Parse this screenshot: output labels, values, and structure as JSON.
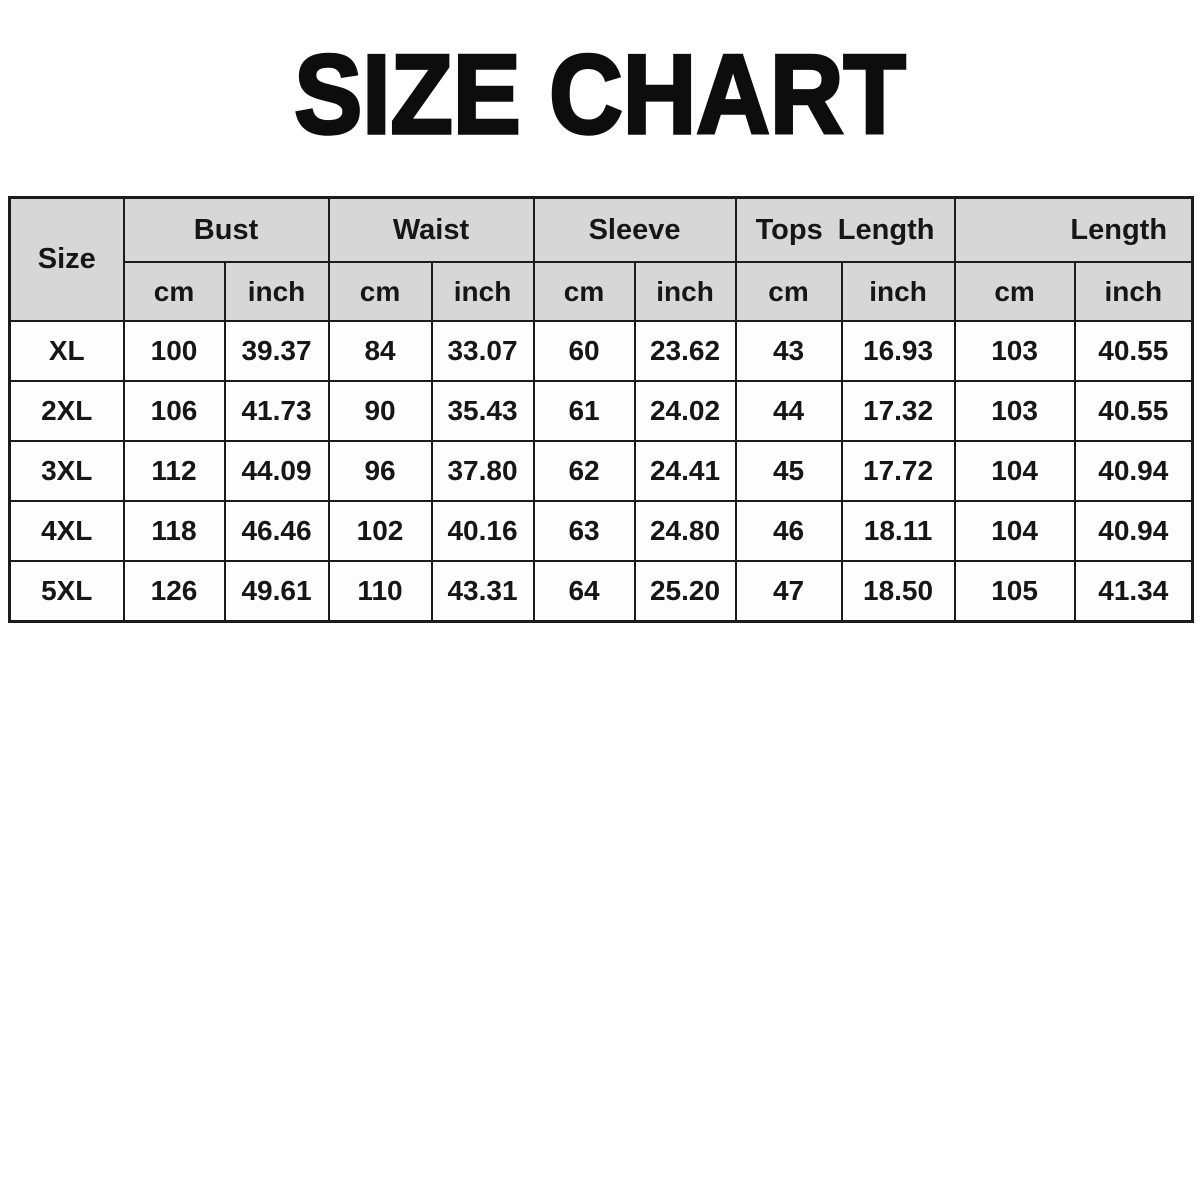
{
  "page": {
    "title": "SIZE CHART"
  },
  "colors": {
    "page_bg": "#ffffff",
    "header_bg": "#d7d7d7",
    "cell_bg": "#fdfdfd",
    "border": "#1c1c1c",
    "text": "#161616",
    "title_text": "#0d0d0d"
  },
  "table": {
    "corner_header": "Size",
    "groups": [
      {
        "label": "Bust"
      },
      {
        "label": "Waist"
      },
      {
        "label": "Sleeve"
      },
      {
        "label": "Tops Length"
      },
      {
        "label": "Length"
      }
    ],
    "unit_headers": [
      "cm",
      "inch",
      "cm",
      "inch",
      "cm",
      "inch",
      "cm",
      "inch",
      "cm",
      "inch"
    ],
    "rows": [
      {
        "size": "XL",
        "values": [
          "100",
          "39.37",
          "84",
          "33.07",
          "60",
          "23.62",
          "43",
          "16.93",
          "103",
          "40.55"
        ]
      },
      {
        "size": "2XL",
        "values": [
          "106",
          "41.73",
          "90",
          "35.43",
          "61",
          "24.02",
          "44",
          "17.32",
          "103",
          "40.55"
        ]
      },
      {
        "size": "3XL",
        "values": [
          "112",
          "44.09",
          "96",
          "37.80",
          "62",
          "24.41",
          "45",
          "17.72",
          "104",
          "40.94"
        ]
      },
      {
        "size": "4XL",
        "values": [
          "118",
          "46.46",
          "102",
          "40.16",
          "63",
          "24.80",
          "46",
          "18.11",
          "104",
          "40.94"
        ]
      },
      {
        "size": "5XL",
        "values": [
          "126",
          "49.61",
          "110",
          "43.31",
          "64",
          "25.20",
          "47",
          "18.50",
          "105",
          "41.34"
        ]
      }
    ]
  },
  "chart_data": {
    "type": "table",
    "title": "SIZE CHART",
    "columns": [
      "Size",
      "Bust (cm)",
      "Bust (inch)",
      "Waist (cm)",
      "Waist (inch)",
      "Sleeve (cm)",
      "Sleeve (inch)",
      "Tops Length (cm)",
      "Tops Length (inch)",
      "Length (cm)",
      "Length (inch)"
    ],
    "rows": [
      [
        "XL",
        100,
        39.37,
        84,
        33.07,
        60,
        23.62,
        43,
        16.93,
        103,
        40.55
      ],
      [
        "2XL",
        106,
        41.73,
        90,
        35.43,
        61,
        24.02,
        44,
        17.32,
        103,
        40.55
      ],
      [
        "3XL",
        112,
        44.09,
        96,
        37.8,
        62,
        24.41,
        45,
        17.72,
        104,
        40.94
      ],
      [
        "4XL",
        118,
        46.46,
        102,
        40.16,
        63,
        24.8,
        46,
        18.11,
        104,
        40.94
      ],
      [
        "5XL",
        126,
        49.61,
        110,
        43.31,
        64,
        25.2,
        47,
        18.5,
        105,
        41.34
      ]
    ]
  }
}
